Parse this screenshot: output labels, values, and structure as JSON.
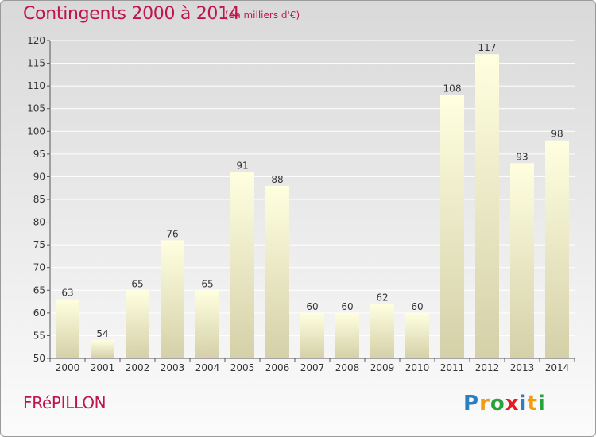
{
  "header": {
    "title": "Contingents 2000 à 2014",
    "unit_note": "(en milliers d'€)"
  },
  "footer": {
    "commune": "FRéPILLON",
    "brand": "Proxiti",
    "brand_letters": [
      {
        "ch": "P",
        "color": "#2a7fc1"
      },
      {
        "ch": "r",
        "color": "#f39c12"
      },
      {
        "ch": "o",
        "color": "#27a33c"
      },
      {
        "ch": "x",
        "color": "#e31b23"
      },
      {
        "ch": "i",
        "color": "#2a7fc1"
      },
      {
        "ch": "t",
        "color": "#f39c12"
      },
      {
        "ch": "i",
        "color": "#27a33c"
      }
    ]
  },
  "colors": {
    "accent": "#c0144e",
    "bar_top": "#ffffe0",
    "bar_bottom": "#d4d0a8",
    "axis": "#555555"
  },
  "chart_data": {
    "type": "bar",
    "title": "Contingents 2000 à 2014",
    "subtitle": "(en milliers d'€)",
    "categories": [
      "2000",
      "2001",
      "2002",
      "2003",
      "2004",
      "2005",
      "2006",
      "2007",
      "2008",
      "2009",
      "2010",
      "2011",
      "2012",
      "2013",
      "2014"
    ],
    "values": [
      63,
      54,
      65,
      76,
      65,
      91,
      88,
      60,
      60,
      62,
      60,
      108,
      117,
      93,
      98
    ],
    "ylim": [
      50,
      120
    ],
    "yticks": [
      50,
      55,
      60,
      65,
      70,
      75,
      80,
      85,
      90,
      95,
      100,
      105,
      110,
      115,
      120
    ],
    "grid": true,
    "data_labels": true
  }
}
